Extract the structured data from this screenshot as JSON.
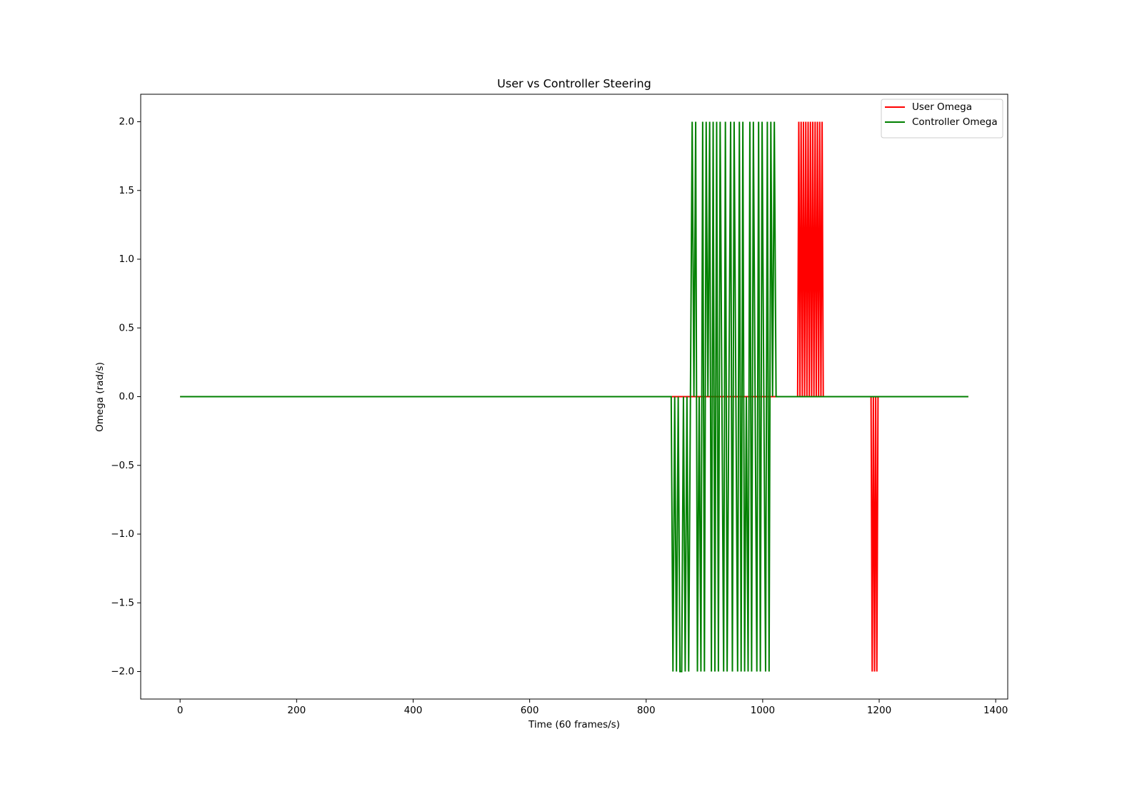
{
  "chart_data": {
    "type": "line",
    "title": "User vs Controller Steering",
    "x_label": "Time (60 frames/s)",
    "y_label": "Omega (rad/s)",
    "x": [
      0,
      843,
      846,
      849,
      852,
      855,
      858,
      861,
      864,
      867,
      870,
      873,
      876,
      879,
      882,
      885,
      888,
      891,
      894,
      897,
      900,
      903,
      906,
      909,
      912,
      915,
      918,
      921,
      924,
      927,
      930,
      933,
      936,
      939,
      942,
      945,
      948,
      951,
      954,
      957,
      960,
      963,
      966,
      969,
      972,
      975,
      978,
      981,
      984,
      987,
      990,
      993,
      996,
      999,
      1002,
      1005,
      1008,
      1011,
      1014,
      1017,
      1020,
      1023,
      1058,
      1060,
      1062,
      1064,
      1066,
      1068,
      1070,
      1072,
      1074,
      1076,
      1078,
      1080,
      1082,
      1084,
      1086,
      1088,
      1090,
      1092,
      1094,
      1096,
      1098,
      1100,
      1102,
      1104,
      1106,
      1186,
      1188,
      1190,
      1192,
      1194,
      1196,
      1198,
      1353
    ],
    "series": [
      {
        "name": "User Omega",
        "color": "#ff0000",
        "values": [
          0,
          0,
          0,
          0,
          0,
          0,
          0,
          0,
          0,
          0,
          0,
          0,
          0,
          0,
          0,
          0,
          0,
          0,
          0,
          0,
          0,
          0,
          0,
          0,
          0,
          0,
          0,
          0,
          0,
          0,
          0,
          0,
          0,
          0,
          0,
          0,
          0,
          0,
          0,
          0,
          0,
          0,
          0,
          0,
          0,
          0,
          0,
          0,
          0,
          0,
          0,
          0,
          0,
          0,
          0,
          0,
          0,
          0,
          0,
          0,
          0,
          0,
          0,
          0,
          2,
          0,
          2,
          0,
          2,
          0,
          2,
          0,
          2,
          0,
          2,
          0,
          2,
          0,
          2,
          0,
          2,
          0,
          2,
          0,
          2,
          0,
          0,
          0,
          -2,
          0,
          -2,
          0,
          -2,
          0,
          0
        ]
      },
      {
        "name": "Controller Omega",
        "color": "#008000",
        "values": [
          0,
          0,
          -2,
          0,
          -2,
          0,
          -2,
          -2,
          0,
          -2,
          0,
          -2,
          0,
          2,
          0,
          2,
          -2,
          0,
          -2,
          2,
          -2,
          2,
          0,
          2,
          -2,
          2,
          -2,
          2,
          -2,
          2,
          0,
          -2,
          2,
          -2,
          0,
          2,
          -2,
          2,
          0,
          -2,
          2,
          -2,
          2,
          -2,
          0,
          -2,
          2,
          -2,
          2,
          0,
          -2,
          2,
          -2,
          2,
          0,
          -2,
          2,
          -2,
          2,
          0,
          2,
          0,
          0,
          0,
          0,
          0,
          0,
          0,
          0,
          0,
          0,
          0,
          0,
          0,
          0,
          0,
          0,
          0,
          0,
          0,
          0,
          0,
          0,
          0,
          0,
          0,
          0,
          0,
          0,
          0,
          0,
          0,
          0,
          0,
          0
        ]
      }
    ],
    "xlim": [
      -67.65,
      1420.65
    ],
    "ylim": [
      -2.2,
      2.2
    ],
    "xticks": [
      0,
      200,
      400,
      600,
      800,
      1000,
      1200,
      1400
    ],
    "yticks": [
      {
        "value": -2,
        "label": "−2.0"
      },
      {
        "value": -1.5,
        "label": "−1.5"
      },
      {
        "value": -1,
        "label": "−1.0"
      },
      {
        "value": -0.5,
        "label": "−0.5"
      },
      {
        "value": 0,
        "label": "0.0"
      },
      0.5,
      {
        "value": 1,
        "label": "1.0"
      },
      1.5,
      {
        "value": 2,
        "label": "2.0"
      }
    ],
    "legend": "upper right"
  }
}
